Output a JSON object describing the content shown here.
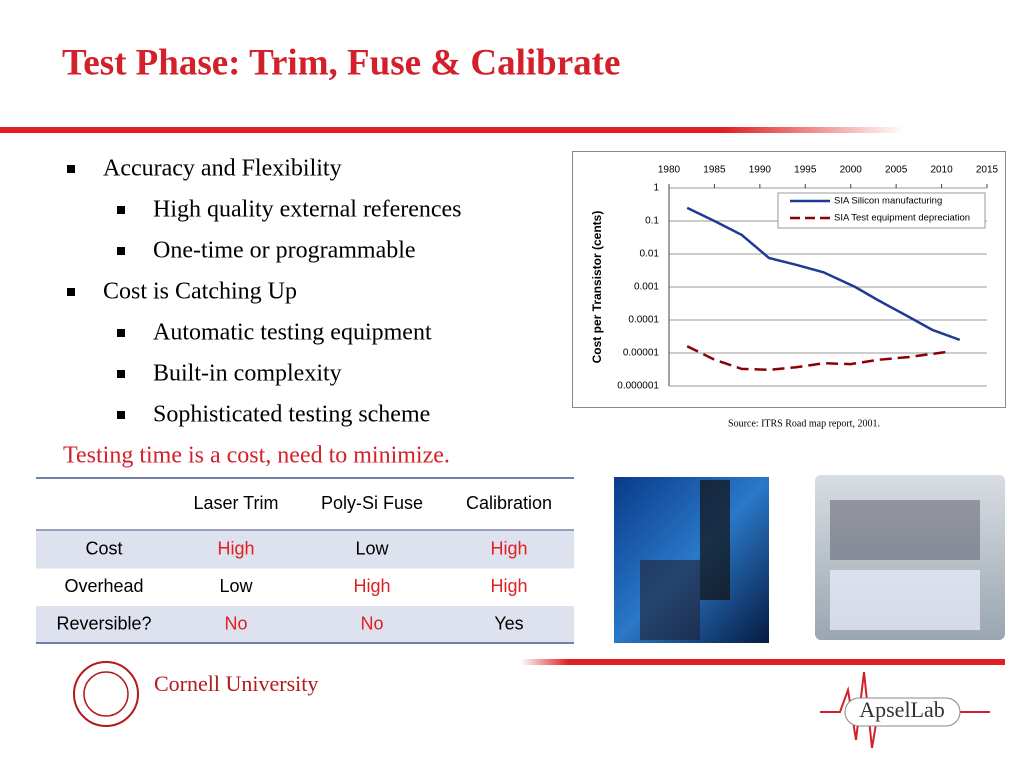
{
  "title": "Test Phase: Trim, Fuse & Calibrate",
  "bullets": [
    {
      "text": "Accuracy and Flexibility",
      "level": 1
    },
    {
      "text": "High quality external references",
      "level": 2
    },
    {
      "text": "One-time or programmable",
      "level": 2
    },
    {
      "text": "Cost is Catching Up",
      "level": 1
    },
    {
      "text": "Automatic testing equipment",
      "level": 2
    },
    {
      "text": "Built-in complexity",
      "level": 2
    },
    {
      "text": "Sophisticated testing scheme",
      "level": 2
    }
  ],
  "note": "Testing time is a cost, need to minimize.",
  "chart_data": {
    "type": "line",
    "ylabel": "Cost per Transistor (cents)",
    "log_y": true,
    "xlim": [
      1980,
      2015
    ],
    "xticks": [
      1980,
      1985,
      1990,
      1995,
      2000,
      2005,
      2010,
      2015
    ],
    "ylim": [
      1e-06,
      1
    ],
    "yticks": [
      1,
      0.1,
      0.01,
      0.001,
      0.0001,
      1e-05,
      1e-06
    ],
    "grid": true,
    "legend": "top-right",
    "series": [
      {
        "name": "SIA Silicon manufacturing",
        "color": "#1f3a93",
        "dash": false,
        "x": [
          1982,
          1985,
          1988,
          1991,
          1994,
          1997,
          2000.5,
          2003,
          2006.5,
          2009,
          2012
        ],
        "values": [
          0.25,
          0.1,
          0.038,
          0.0076,
          0.0047,
          0.0028,
          0.001,
          0.0004,
          0.00012,
          5e-05,
          2.5e-05
        ]
      },
      {
        "name": "SIA Test equipment depreciation",
        "color": "#8b0000",
        "dash": true,
        "x": [
          1982,
          1985,
          1988,
          1991,
          1994,
          1997,
          2000,
          2003,
          2006.5,
          2010.5
        ],
        "values": [
          1.6e-05,
          6.3e-06,
          3.3e-06,
          3.1e-06,
          3.7e-06,
          4.9e-06,
          4.6e-06,
          6.2e-06,
          7.6e-06,
          1.07e-05
        ]
      }
    ]
  },
  "source": "Source: ITRS Road map report, 2001.",
  "table": {
    "columns": [
      "Laser Trim",
      "Poly-Si Fuse",
      "Calibration"
    ],
    "rows": [
      {
        "label": "Cost",
        "cells": [
          {
            "text": "High",
            "alert": true
          },
          {
            "text": "Low",
            "alert": false
          },
          {
            "text": "High",
            "alert": true
          }
        ]
      },
      {
        "label": "Overhead",
        "cells": [
          {
            "text": "Low",
            "alert": false
          },
          {
            "text": "High",
            "alert": true
          },
          {
            "text": "High",
            "alert": true
          }
        ]
      },
      {
        "label": "Reversible?",
        "cells": [
          {
            "text": "No",
            "alert": true
          },
          {
            "text": "No",
            "alert": true
          },
          {
            "text": "Yes",
            "alert": false
          }
        ]
      }
    ]
  },
  "footer": {
    "left_logo": "Cornell University",
    "right_logo": "ApselLab"
  }
}
